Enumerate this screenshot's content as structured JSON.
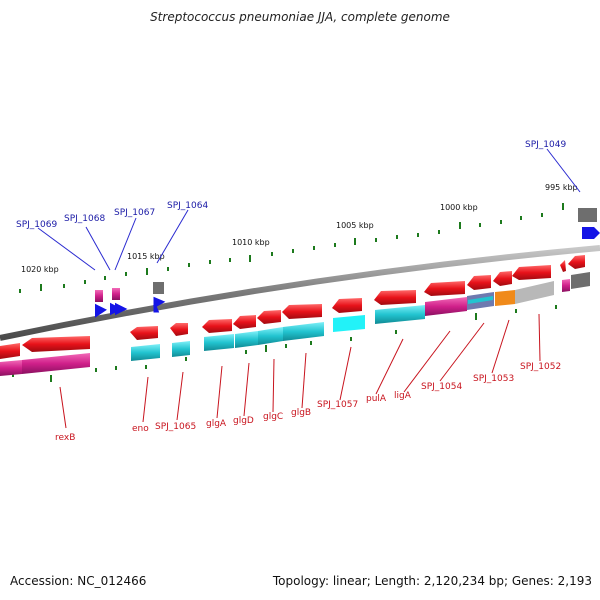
{
  "title": "Streptococcus pneumoniae JJA, complete genome",
  "footer": {
    "accession": "Accession: NC_012466",
    "summary": "Topology: linear; Length: 2,120,234 bp; Genes: 2,193"
  },
  "colors": {
    "forward_gene": "#e8121a",
    "reverse_gene": "#e8121a",
    "blue_gene": "#1414e6",
    "gray_gene": "#6e6e6e",
    "cyan_feature": "#22b8c6",
    "magenta_feature": "#d0208a",
    "orange_feature": "#f08a1a",
    "lightgray_feature": "#b8b8b8",
    "backbone": "#8a8a8a",
    "tick": "#1d7a1d",
    "label_blue": "#1a1aa6",
    "label_red": "#c8141e"
  },
  "kbp_labels": [
    "1020 kbp",
    "1015 kbp",
    "1010 kbp",
    "1005 kbp",
    "1000 kbp",
    "995 kbp"
  ],
  "top_labels": [
    "SPJ_1069",
    "SPJ_1068",
    "SPJ_1067",
    "SPJ_1064",
    "SPJ_1049"
  ],
  "bottom_labels": [
    "rexB",
    "eno",
    "SPJ_1065",
    "glgA",
    "glgD",
    "glgC",
    "glgB",
    "SPJ_1057",
    "pulA",
    "ligA",
    "SPJ_1054",
    "SPJ_1053",
    "SPJ_1052"
  ]
}
